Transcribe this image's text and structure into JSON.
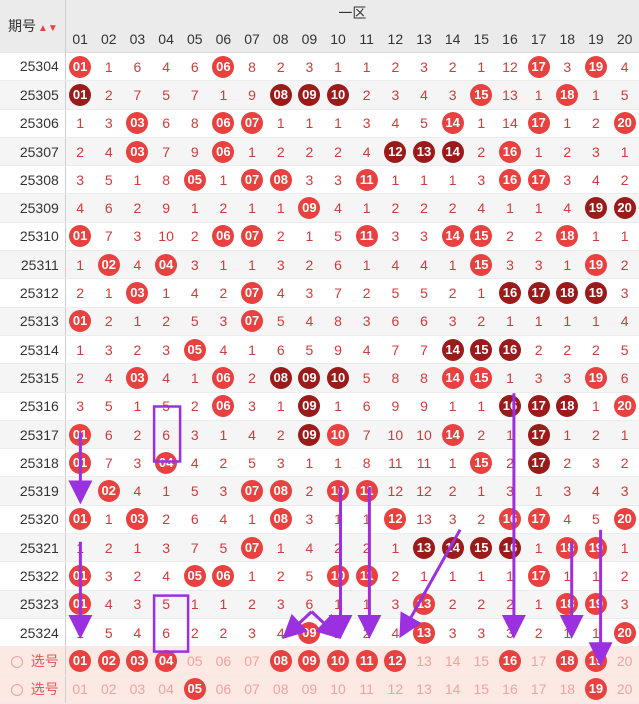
{
  "header": {
    "period_label": "期号",
    "zone_label": "一区",
    "columns": [
      "01",
      "02",
      "03",
      "04",
      "05",
      "06",
      "07",
      "08",
      "09",
      "10",
      "11",
      "12",
      "13",
      "14",
      "15",
      "16",
      "17",
      "18",
      "19",
      "20"
    ]
  },
  "sort_icon": "sort-updown-icon",
  "rows": [
    {
      "period": "25304",
      "cells": [
        {
          "t": "01",
          "b": 1
        },
        "1",
        "6",
        "4",
        "6",
        {
          "t": "06",
          "b": 1
        },
        "8",
        "2",
        "3",
        "1",
        "1",
        "2",
        "3",
        "2",
        "1",
        "12",
        {
          "t": "17",
          "b": 1
        },
        "3",
        {
          "t": "19",
          "b": 1
        },
        "4"
      ]
    },
    {
      "period": "25305",
      "cells": [
        {
          "t": "01",
          "b": 2
        },
        "2",
        "7",
        "5",
        "7",
        "1",
        "9",
        {
          "t": "08",
          "b": 2
        },
        {
          "t": "09",
          "b": 2
        },
        {
          "t": "10",
          "b": 2
        },
        "2",
        "3",
        "4",
        "3",
        {
          "t": "15",
          "b": 1
        },
        "13",
        "1",
        {
          "t": "18",
          "b": 1
        },
        "1",
        "5"
      ]
    },
    {
      "period": "25306",
      "cells": [
        "1",
        "3",
        {
          "t": "03",
          "b": 1
        },
        "6",
        "8",
        {
          "t": "06",
          "b": 1
        },
        {
          "t": "07",
          "b": 1
        },
        "1",
        "1",
        "1",
        "3",
        "4",
        "5",
        {
          "t": "14",
          "b": 1
        },
        "1",
        "14",
        {
          "t": "17",
          "b": 1
        },
        "1",
        "2",
        {
          "t": "20",
          "b": 1
        }
      ]
    },
    {
      "period": "25307",
      "cells": [
        "2",
        "4",
        {
          "t": "03",
          "b": 1
        },
        "7",
        "9",
        {
          "t": "06",
          "b": 1
        },
        "1",
        "2",
        "2",
        "2",
        "4",
        {
          "t": "12",
          "b": 2
        },
        {
          "t": "13",
          "b": 2
        },
        {
          "t": "14",
          "b": 2
        },
        "2",
        {
          "t": "16",
          "b": 1
        },
        "1",
        "2",
        "3",
        "1"
      ]
    },
    {
      "period": "25308",
      "cells": [
        "3",
        "5",
        "1",
        "8",
        {
          "t": "05",
          "b": 1
        },
        "1",
        {
          "t": "07",
          "b": 1
        },
        {
          "t": "08",
          "b": 1
        },
        "3",
        "3",
        {
          "t": "11",
          "b": 1
        },
        "1",
        "1",
        "1",
        "3",
        {
          "t": "16",
          "b": 1
        },
        {
          "t": "17",
          "b": 1
        },
        "3",
        "4",
        "2"
      ]
    },
    {
      "period": "25309",
      "cells": [
        "4",
        "6",
        "2",
        "9",
        "1",
        "2",
        "1",
        "1",
        {
          "t": "09",
          "b": 1
        },
        "4",
        "1",
        "2",
        "2",
        "2",
        "4",
        "1",
        "1",
        "4",
        {
          "t": "19",
          "b": 2
        },
        {
          "t": "20",
          "b": 2
        }
      ]
    },
    {
      "period": "25310",
      "cells": [
        {
          "t": "01",
          "b": 1
        },
        "7",
        "3",
        "10",
        "2",
        {
          "t": "06",
          "b": 1
        },
        {
          "t": "07",
          "b": 1
        },
        "2",
        "1",
        "5",
        {
          "t": "11",
          "b": 1
        },
        "3",
        "3",
        {
          "t": "14",
          "b": 1
        },
        {
          "t": "15",
          "b": 1
        },
        "2",
        "2",
        {
          "t": "18",
          "b": 1
        },
        "1",
        "1"
      ]
    },
    {
      "period": "25311",
      "cells": [
        "1",
        {
          "t": "02",
          "b": 1
        },
        "4",
        {
          "t": "04",
          "b": 1
        },
        "3",
        "1",
        "1",
        "3",
        "2",
        "6",
        "1",
        "4",
        "4",
        "1",
        {
          "t": "15",
          "b": 1
        },
        "3",
        "3",
        "1",
        {
          "t": "19",
          "b": 1
        },
        "2"
      ]
    },
    {
      "period": "25312",
      "cells": [
        "2",
        "1",
        {
          "t": "03",
          "b": 1
        },
        "1",
        "4",
        "2",
        {
          "t": "07",
          "b": 1
        },
        "4",
        "3",
        "7",
        "2",
        "5",
        "5",
        "2",
        "1",
        {
          "t": "16",
          "b": 2
        },
        {
          "t": "17",
          "b": 2
        },
        {
          "t": "18",
          "b": 2
        },
        {
          "t": "19",
          "b": 2
        },
        "3"
      ]
    },
    {
      "period": "25313",
      "cells": [
        {
          "t": "01",
          "b": 1
        },
        "2",
        "1",
        "2",
        "5",
        "3",
        {
          "t": "07",
          "b": 1
        },
        "5",
        "4",
        "8",
        "3",
        "6",
        "6",
        "3",
        "2",
        "1",
        "1",
        "1",
        "1",
        "4"
      ]
    },
    {
      "period": "25314",
      "cells": [
        "1",
        "3",
        "2",
        "3",
        {
          "t": "05",
          "b": 1
        },
        "4",
        "1",
        "6",
        "5",
        "9",
        "4",
        "7",
        "7",
        {
          "t": "14",
          "b": 2
        },
        {
          "t": "15",
          "b": 2
        },
        {
          "t": "16",
          "b": 2
        },
        "2",
        "2",
        "2",
        "5"
      ]
    },
    {
      "period": "25315",
      "cells": [
        "2",
        "4",
        {
          "t": "03",
          "b": 1
        },
        "4",
        "1",
        {
          "t": "06",
          "b": 1
        },
        "2",
        {
          "t": "08",
          "b": 2
        },
        {
          "t": "09",
          "b": 2
        },
        {
          "t": "10",
          "b": 2
        },
        "5",
        "8",
        "8",
        {
          "t": "14",
          "b": 1
        },
        {
          "t": "15",
          "b": 1
        },
        "1",
        "3",
        "3",
        {
          "t": "19",
          "b": 1
        },
        "6"
      ]
    },
    {
      "period": "25316",
      "cells": [
        "3",
        "5",
        "1",
        "5",
        "2",
        {
          "t": "06",
          "b": 1
        },
        "3",
        "1",
        {
          "t": "09",
          "b": 2
        },
        "1",
        "6",
        "9",
        "9",
        "1",
        "1",
        {
          "t": "16",
          "b": 2
        },
        {
          "t": "17",
          "b": 2
        },
        {
          "t": "18",
          "b": 2
        },
        "1",
        {
          "t": "20",
          "b": 1
        }
      ]
    },
    {
      "period": "25317",
      "cells": [
        {
          "t": "01",
          "b": 1
        },
        "6",
        "2",
        "6",
        "3",
        "1",
        "4",
        "2",
        {
          "t": "09",
          "b": 2
        },
        {
          "t": "10",
          "b": 1
        },
        "7",
        "10",
        "10",
        {
          "t": "14",
          "b": 1
        },
        "2",
        "1",
        {
          "t": "17",
          "b": 2
        },
        "1",
        "2",
        "1"
      ]
    },
    {
      "period": "25318",
      "cells": [
        {
          "t": "01",
          "b": 1
        },
        "7",
        "3",
        {
          "t": "04",
          "b": 1
        },
        "4",
        "2",
        "5",
        "3",
        "1",
        "1",
        "8",
        "11",
        "11",
        "1",
        {
          "t": "15",
          "b": 1
        },
        "2",
        {
          "t": "17",
          "b": 2
        },
        "2",
        "3",
        "2"
      ]
    },
    {
      "period": "25319",
      "cells": [
        "1",
        {
          "t": "02",
          "b": 1
        },
        "4",
        "1",
        "5",
        "3",
        {
          "t": "07",
          "b": 1
        },
        {
          "t": "08",
          "b": 1
        },
        "2",
        {
          "t": "10",
          "b": 1
        },
        {
          "t": "11",
          "b": 1
        },
        "12",
        "12",
        "2",
        "1",
        "3",
        "1",
        "3",
        "4",
        "3"
      ]
    },
    {
      "period": "25320",
      "cells": [
        {
          "t": "01",
          "b": 1
        },
        "1",
        {
          "t": "03",
          "b": 1
        },
        "2",
        "6",
        "4",
        "1",
        {
          "t": "08",
          "b": 1
        },
        "3",
        "1",
        "1",
        {
          "t": "12",
          "b": 1
        },
        "13",
        "3",
        "2",
        {
          "t": "16",
          "b": 1
        },
        {
          "t": "17",
          "b": 1
        },
        "4",
        "5",
        {
          "t": "20",
          "b": 1
        }
      ]
    },
    {
      "period": "25321",
      "cells": [
        "1",
        "2",
        "1",
        "3",
        "7",
        "5",
        {
          "t": "07",
          "b": 1
        },
        "1",
        "4",
        "2",
        "2",
        "1",
        {
          "t": "13",
          "b": 2
        },
        {
          "t": "14",
          "b": 2
        },
        {
          "t": "15",
          "b": 2
        },
        {
          "t": "16",
          "b": 2
        },
        "1",
        {
          "t": "18",
          "b": 1
        },
        {
          "t": "19",
          "b": 1
        },
        "1"
      ]
    },
    {
      "period": "25322",
      "cells": [
        {
          "t": "01",
          "b": 1
        },
        "3",
        "2",
        "4",
        {
          "t": "05",
          "b": 1
        },
        {
          "t": "06",
          "b": 1
        },
        "1",
        "2",
        "5",
        {
          "t": "10",
          "b": 1
        },
        {
          "t": "11",
          "b": 1
        },
        "2",
        "1",
        "1",
        "1",
        "1",
        {
          "t": "17",
          "b": 1
        },
        "1",
        "1",
        "2"
      ]
    },
    {
      "period": "25323",
      "cells": [
        {
          "t": "01",
          "b": 1
        },
        "4",
        "3",
        "5",
        "1",
        "1",
        "2",
        "3",
        "6",
        "1",
        "1",
        "3",
        {
          "t": "13",
          "b": 1
        },
        "2",
        "2",
        "2",
        "1",
        {
          "t": "18",
          "b": 1
        },
        {
          "t": "19",
          "b": 1
        },
        "3"
      ]
    },
    {
      "period": "25324",
      "cells": [
        "1",
        "5",
        "4",
        "6",
        "2",
        "2",
        "3",
        "4",
        {
          "t": "09",
          "b": 1
        },
        "2",
        "2",
        "4",
        {
          "t": "13",
          "b": 1
        },
        "3",
        "3",
        "3",
        "2",
        "1",
        "1",
        {
          "t": "20",
          "b": 1
        }
      ]
    }
  ],
  "select_rows": [
    {
      "label": "选号",
      "cells": [
        {
          "t": "01",
          "b": 1
        },
        {
          "t": "02",
          "b": 1
        },
        {
          "t": "03",
          "b": 1
        },
        {
          "t": "04",
          "b": 1
        },
        "05",
        "06",
        "07",
        {
          "t": "08",
          "b": 1
        },
        {
          "t": "09",
          "b": 1
        },
        {
          "t": "10",
          "b": 1
        },
        {
          "t": "11",
          "b": 1
        },
        {
          "t": "12",
          "b": 1
        },
        "13",
        "14",
        "15",
        {
          "t": "16",
          "b": 1
        },
        "17",
        {
          "t": "18",
          "b": 1
        },
        {
          "t": "19",
          "b": 1
        },
        "20"
      ]
    },
    {
      "label": "选号",
      "cells": [
        "01",
        "02",
        "03",
        "04",
        {
          "t": "05",
          "b": 1
        },
        "06",
        "07",
        "08",
        "09",
        "10",
        "11",
        "12",
        "13",
        "14",
        "15",
        "16",
        "17",
        "18",
        {
          "t": "19",
          "b": 1
        },
        "20"
      ]
    }
  ],
  "colors": {
    "ball_red": "#e8413f",
    "ball_dark": "#9b1b1b",
    "annotation": "#9b30e0"
  }
}
